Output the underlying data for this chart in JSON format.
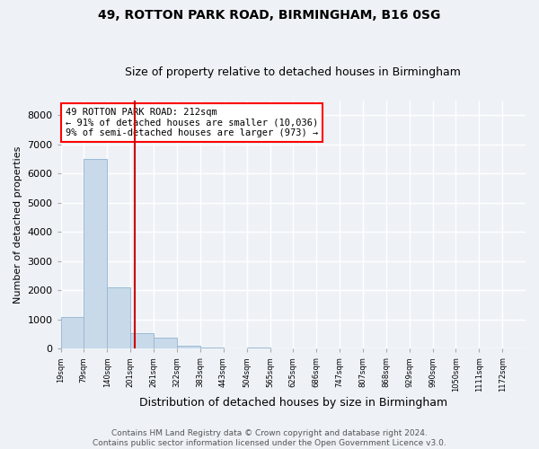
{
  "title": "49, ROTTON PARK ROAD, BIRMINGHAM, B16 0SG",
  "subtitle": "Size of property relative to detached houses in Birmingham",
  "xlabel": "Distribution of detached houses by size in Birmingham",
  "ylabel": "Number of detached properties",
  "footer_line1": "Contains HM Land Registry data © Crown copyright and database right 2024.",
  "footer_line2": "Contains public sector information licensed under the Open Government Licence v3.0.",
  "annotation_line1": "49 ROTTON PARK ROAD: 212sqm",
  "annotation_line2": "← 91% of detached houses are smaller (10,036)",
  "annotation_line3": "9% of semi-detached houses are larger (973) →",
  "bar_color": "#c8d9ea",
  "bar_edge_color": "#9bbbd4",
  "redline_color": "#cc0000",
  "redline_x": 212,
  "ylim": [
    0,
    8500
  ],
  "yticks": [
    0,
    1000,
    2000,
    3000,
    4000,
    5000,
    6000,
    7000,
    8000
  ],
  "bin_edges": [
    19,
    79,
    140,
    201,
    261,
    322,
    383,
    443,
    504,
    565,
    625,
    686,
    747,
    807,
    868,
    929,
    990,
    1050,
    1111,
    1172,
    1232
  ],
  "bar_heights": [
    1100,
    6500,
    2100,
    550,
    380,
    120,
    40,
    10,
    50,
    0,
    0,
    0,
    0,
    0,
    0,
    0,
    0,
    0,
    0,
    0
  ],
  "background_color": "#eef2f7",
  "plot_background": "#eef2f7",
  "grid_color": "#ffffff",
  "title_fontsize": 10,
  "subtitle_fontsize": 9,
  "ylabel_fontsize": 8,
  "xlabel_fontsize": 9,
  "ytick_fontsize": 8,
  "xtick_fontsize": 6,
  "footer_fontsize": 6.5,
  "annotation_fontsize": 7.5
}
